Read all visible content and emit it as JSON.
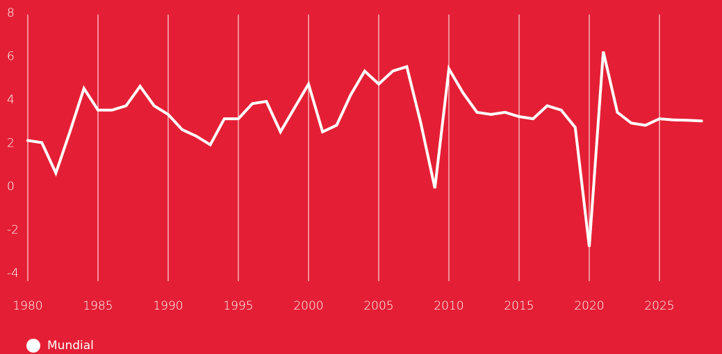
{
  "chart_data": {
    "type": "line",
    "title": "",
    "xlabel": "",
    "ylabel": "",
    "xlim": [
      1980,
      2028
    ],
    "ylim": [
      -4,
      8
    ],
    "x_ticks": [
      1980,
      1985,
      1990,
      1995,
      2000,
      2005,
      2010,
      2015,
      2020,
      2025
    ],
    "y_ticks": [
      8,
      6,
      4,
      2,
      0,
      -2,
      -4
    ],
    "grid": "vertical",
    "legend_position": "bottom-left",
    "colors": {
      "background": "#E41F35",
      "line": "#ffffff",
      "grid": "#ffffff"
    },
    "series": [
      {
        "name": "Mundial",
        "x": [
          1980,
          1981,
          1982,
          1983,
          1984,
          1985,
          1986,
          1987,
          1988,
          1989,
          1990,
          1991,
          1992,
          1993,
          1994,
          1995,
          1996,
          1997,
          1998,
          1999,
          2000,
          2001,
          2002,
          2003,
          2004,
          2005,
          2006,
          2007,
          2008,
          2009,
          2010,
          2011,
          2012,
          2013,
          2014,
          2015,
          2016,
          2017,
          2018,
          2019,
          2020,
          2021,
          2022,
          2023,
          2024,
          2025,
          2026,
          2027,
          2028
        ],
        "values": [
          2.1,
          2.0,
          0.6,
          2.5,
          4.5,
          3.5,
          3.5,
          3.7,
          4.6,
          3.7,
          3.3,
          2.6,
          2.3,
          1.9,
          3.1,
          3.1,
          3.8,
          3.9,
          2.5,
          3.6,
          4.7,
          2.5,
          2.8,
          4.2,
          5.3,
          4.7,
          5.3,
          5.5,
          2.9,
          -0.1,
          5.4,
          4.3,
          3.4,
          3.3,
          3.4,
          3.2,
          3.1,
          3.7,
          3.5,
          2.7,
          -2.8,
          6.2,
          3.4,
          2.9,
          2.8,
          3.1,
          3.05,
          3.03,
          3.0
        ]
      }
    ]
  },
  "legend": {
    "label": "Mundial"
  }
}
